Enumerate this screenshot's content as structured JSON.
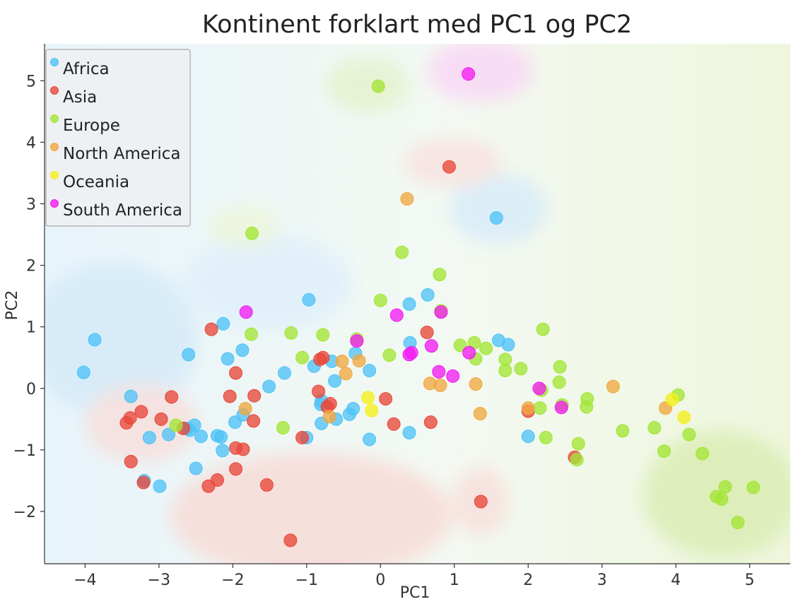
{
  "chart_data": {
    "type": "scatter",
    "title": "Kontinent forklart med PC1 og PC2",
    "xlabel": "PC1",
    "ylabel": "PC2",
    "xlim": [
      -4.55,
      5.55
    ],
    "ylim": [
      -2.85,
      5.6
    ],
    "xticks": [
      -4,
      -3,
      -2,
      -1,
      0,
      1,
      2,
      3,
      4,
      5
    ],
    "yticks": [
      -2,
      -1,
      0,
      1,
      2,
      3,
      4,
      5
    ],
    "grid": false,
    "legend_position": "top-left",
    "background": "decision-region shading per class",
    "series": [
      {
        "name": "Africa",
        "color": "#4fc3f7",
        "points": [
          [
            -4.02,
            0.26
          ],
          [
            -3.87,
            0.79
          ],
          [
            -3.38,
            -0.13
          ],
          [
            -3.2,
            -1.5
          ],
          [
            -3.13,
            -0.8
          ],
          [
            -2.99,
            -1.59
          ],
          [
            -2.87,
            -0.75
          ],
          [
            -2.62,
            -0.65
          ],
          [
            -2.58,
            -0.68
          ],
          [
            -2.52,
            -0.6
          ],
          [
            -2.6,
            0.55
          ],
          [
            -2.5,
            -1.3
          ],
          [
            -2.43,
            -0.78
          ],
          [
            -2.21,
            -0.77
          ],
          [
            -2.16,
            -0.79
          ],
          [
            -2.14,
            -1.01
          ],
          [
            -2.13,
            1.05
          ],
          [
            -2.07,
            0.48
          ],
          [
            -1.97,
            -0.55
          ],
          [
            -1.87,
            0.62
          ],
          [
            -1.86,
            -0.43
          ],
          [
            -1.51,
            0.03
          ],
          [
            -1.3,
            0.25
          ],
          [
            -1.0,
            -0.8
          ],
          [
            -0.97,
            1.44
          ],
          [
            -0.9,
            0.36
          ],
          [
            -0.81,
            -0.26
          ],
          [
            -0.8,
            -0.2
          ],
          [
            -0.8,
            -0.57
          ],
          [
            -0.66,
            0.44
          ],
          [
            -0.62,
            0.12
          ],
          [
            -0.6,
            -0.5
          ],
          [
            -0.42,
            -0.42
          ],
          [
            -0.37,
            -0.33
          ],
          [
            -0.34,
            0.57
          ],
          [
            -0.15,
            0.29
          ],
          [
            -0.15,
            -0.83
          ],
          [
            0.39,
            1.37
          ],
          [
            0.4,
            0.74
          ],
          [
            0.39,
            -0.72
          ],
          [
            0.64,
            1.52
          ],
          [
            1.6,
            0.78
          ],
          [
            1.73,
            0.71
          ],
          [
            1.57,
            2.77
          ],
          [
            2.0,
            -0.78
          ]
        ]
      },
      {
        "name": "Asia",
        "color": "#e8483a",
        "points": [
          [
            -3.44,
            -0.56
          ],
          [
            -3.39,
            -0.48
          ],
          [
            -3.38,
            -1.19
          ],
          [
            -3.24,
            -0.38
          ],
          [
            -3.21,
            -1.53
          ],
          [
            -2.97,
            -0.5
          ],
          [
            -2.83,
            -0.14
          ],
          [
            -2.67,
            -0.65
          ],
          [
            -2.33,
            -1.59
          ],
          [
            -2.29,
            0.96
          ],
          [
            -2.21,
            -1.49
          ],
          [
            -2.04,
            -0.13
          ],
          [
            -1.96,
            0.25
          ],
          [
            -1.96,
            -0.97
          ],
          [
            -1.96,
            -1.31
          ],
          [
            -1.86,
            -0.99
          ],
          [
            -1.72,
            -0.53
          ],
          [
            -1.71,
            -0.12
          ],
          [
            -1.54,
            -1.57
          ],
          [
            -1.22,
            -2.47
          ],
          [
            -1.06,
            -0.8
          ],
          [
            -0.84,
            -0.05
          ],
          [
            -0.82,
            0.47
          ],
          [
            -0.78,
            0.5
          ],
          [
            -0.72,
            -0.3
          ],
          [
            -0.68,
            -0.25
          ],
          [
            0.07,
            -0.17
          ],
          [
            0.18,
            -0.58
          ],
          [
            0.63,
            0.91
          ],
          [
            0.68,
            -0.55
          ],
          [
            0.93,
            3.6
          ],
          [
            1.36,
            -1.84
          ],
          [
            2.0,
            -0.37
          ],
          [
            2.63,
            -1.12
          ]
        ]
      },
      {
        "name": "Europe",
        "color": "#a3e635",
        "points": [
          [
            -0.03,
            4.91
          ],
          [
            -1.74,
            2.52
          ],
          [
            0.29,
            2.21
          ],
          [
            0.8,
            1.85
          ],
          [
            0.0,
            1.43
          ],
          [
            0.82,
            1.26
          ],
          [
            -1.75,
            0.88
          ],
          [
            -1.21,
            0.9
          ],
          [
            -0.78,
            0.87
          ],
          [
            -0.32,
            0.8
          ],
          [
            -1.06,
            0.5
          ],
          [
            0.12,
            0.54
          ],
          [
            1.08,
            0.7
          ],
          [
            1.27,
            0.74
          ],
          [
            1.29,
            0.48
          ],
          [
            1.43,
            0.65
          ],
          [
            1.69,
            0.47
          ],
          [
            1.69,
            0.29
          ],
          [
            1.9,
            0.32
          ],
          [
            2.2,
            0.96
          ],
          [
            2.42,
            0.1
          ],
          [
            2.43,
            0.35
          ],
          [
            2.18,
            -0.03
          ],
          [
            2.46,
            -0.27
          ],
          [
            2.8,
            -0.17
          ],
          [
            2.79,
            -0.3
          ],
          [
            2.16,
            -0.32
          ],
          [
            2.24,
            -0.8
          ],
          [
            2.68,
            -0.9
          ],
          [
            2.66,
            -1.16
          ],
          [
            -2.77,
            -0.6
          ],
          [
            -1.32,
            -0.64
          ],
          [
            3.28,
            -0.69
          ],
          [
            3.71,
            -0.64
          ],
          [
            3.84,
            -1.02
          ],
          [
            4.03,
            -0.11
          ],
          [
            4.18,
            -0.75
          ],
          [
            4.36,
            -1.06
          ],
          [
            4.55,
            -1.76
          ],
          [
            4.62,
            -1.8
          ],
          [
            4.67,
            -1.6
          ],
          [
            4.84,
            -2.18
          ],
          [
            5.05,
            -1.61
          ]
        ]
      },
      {
        "name": "North America",
        "color": "#f0a840",
        "points": [
          [
            0.36,
            3.08
          ],
          [
            -1.83,
            -0.33
          ],
          [
            -0.69,
            -0.46
          ],
          [
            -0.52,
            0.44
          ],
          [
            -0.47,
            0.24
          ],
          [
            -0.29,
            0.45
          ],
          [
            0.67,
            0.08
          ],
          [
            0.81,
            0.05
          ],
          [
            1.29,
            0.07
          ],
          [
            1.35,
            -0.41
          ],
          [
            2.0,
            -0.32
          ],
          [
            3.15,
            0.03
          ],
          [
            3.86,
            -0.32
          ]
        ]
      },
      {
        "name": "Oceania",
        "color": "#f5ef1a",
        "points": [
          [
            -0.17,
            -0.15
          ],
          [
            -0.12,
            -0.36
          ],
          [
            3.95,
            -0.18
          ],
          [
            4.11,
            -0.47
          ]
        ]
      },
      {
        "name": "South America",
        "color": "#f21cf2",
        "points": [
          [
            1.19,
            5.11
          ],
          [
            -1.82,
            1.24
          ],
          [
            0.22,
            1.19
          ],
          [
            0.82,
            1.24
          ],
          [
            -0.32,
            0.77
          ],
          [
            0.39,
            0.55
          ],
          [
            0.42,
            0.58
          ],
          [
            0.69,
            0.69
          ],
          [
            0.79,
            0.27
          ],
          [
            0.98,
            0.2
          ],
          [
            1.2,
            0.58
          ],
          [
            2.15,
            0.0
          ],
          [
            2.45,
            -0.31
          ]
        ]
      }
    ]
  }
}
